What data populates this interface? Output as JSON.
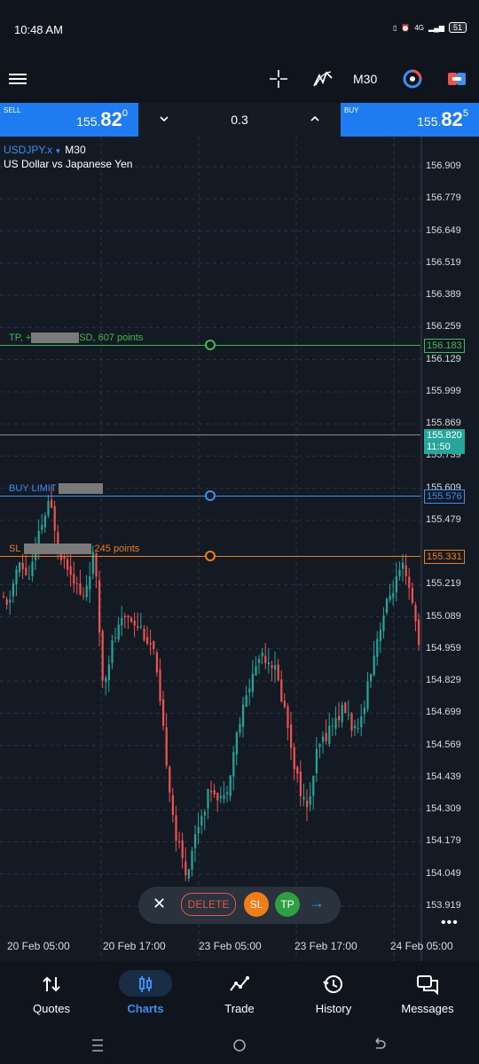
{
  "status_bar": {
    "time": "10:48 AM",
    "network": "4G",
    "battery": "51"
  },
  "toolbar": {
    "timeframe": "M30"
  },
  "trade": {
    "sell_label": "SELL",
    "sell_price_prefix": "155.",
    "sell_price_big": "82",
    "sell_price_sup": "0",
    "buy_label": "BUY",
    "buy_price_prefix": "155.",
    "buy_price_big": "82",
    "buy_price_sup": "5",
    "volume": "0.3"
  },
  "chart": {
    "symbol": "USDJPY.x",
    "timeframe": "M30",
    "description": "US Dollar vs Japanese Yen",
    "y_ticks": [
      "156.909",
      "156.779",
      "156.649",
      "156.519",
      "156.389",
      "156.259",
      "156.129",
      "155.999",
      "155.869",
      "155.739",
      "155.609",
      "155.479",
      "155.219",
      "155.089",
      "154.959",
      "154.829",
      "154.699",
      "154.569",
      "154.439",
      "154.309",
      "154.179",
      "154.049",
      "153.919"
    ],
    "x_ticks": [
      "20 Feb 05:00",
      "20 Feb 17:00",
      "23 Feb 05:00",
      "23 Feb 17:00",
      "24 Feb 05:00"
    ],
    "tp_label_a": "TP, +",
    "tp_label_b": "SD, 607 points",
    "tp_price": "156.183",
    "current_price": "155.820",
    "current_time": "11:50",
    "buy_limit_label": "BUY LIMIT",
    "buy_limit_price": "155.576",
    "sl_label_a": "SL",
    "sl_label_b": "245 points",
    "sl_price": "155.331",
    "colors": {
      "tp": "#3fb950",
      "buy_limit": "#3a8ff0",
      "sl": "#f07d18",
      "bull": "#26a69a",
      "bear": "#ef5350",
      "current": "#26a69a"
    }
  },
  "order_actions": {
    "delete": "DELETE",
    "sl": "SL",
    "tp": "TP"
  },
  "nav": [
    {
      "label": "Quotes",
      "icon": "quotes-icon"
    },
    {
      "label": "Charts",
      "icon": "charts-icon"
    },
    {
      "label": "Trade",
      "icon": "trade-icon"
    },
    {
      "label": "History",
      "icon": "history-icon"
    },
    {
      "label": "Messages",
      "icon": "messages-icon"
    }
  ]
}
